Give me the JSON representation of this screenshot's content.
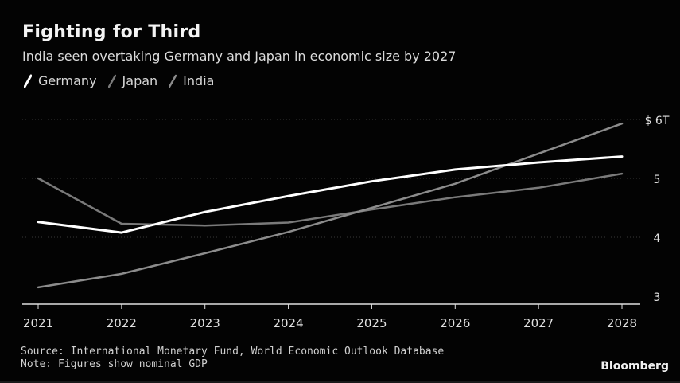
{
  "header": {
    "title": "Fighting for Third",
    "subtitle": "India seen overtaking Germany and Japan in economic size by 2027"
  },
  "footer": {
    "source": "Source: International Monetary Fund, World Economic Outlook Database",
    "note": "Note: Figures show nominal GDP",
    "brand": "Bloomberg"
  },
  "colors": {
    "background": "#030303",
    "germany": "#ffffff",
    "japan": "#7a7a7a",
    "india": "#8c8c8c",
    "axis": "#e0e0e0",
    "grid": "#3a3a3a"
  },
  "chart_data": {
    "type": "line",
    "title": "Fighting for Third",
    "subtitle": "India seen overtaking Germany and Japan in economic size by 2027",
    "x": [
      "2021",
      "2022",
      "2023",
      "2024",
      "2025",
      "2026",
      "2027",
      "2028"
    ],
    "series": [
      {
        "name": "Germany",
        "color": "#ffffff",
        "values": [
          4.26,
          4.08,
          4.43,
          4.7,
          4.95,
          5.15,
          5.27,
          5.37
        ]
      },
      {
        "name": "Japan",
        "color": "#7a7a7a",
        "values": [
          5.0,
          4.23,
          4.2,
          4.25,
          4.47,
          4.68,
          4.84,
          5.08
        ]
      },
      {
        "name": "India",
        "color": "#8c8c8c",
        "values": [
          3.15,
          3.38,
          3.73,
          4.09,
          4.5,
          4.91,
          5.42,
          5.93
        ]
      }
    ],
    "ylim": [
      3.0,
      6.0
    ],
    "yticks": [
      3,
      4,
      5,
      6
    ],
    "ytick_labels": [
      "3",
      "4",
      "5",
      "$ 6T"
    ],
    "xlabel": "",
    "ylabel": "",
    "grid": true,
    "legend_position": "top-left"
  }
}
